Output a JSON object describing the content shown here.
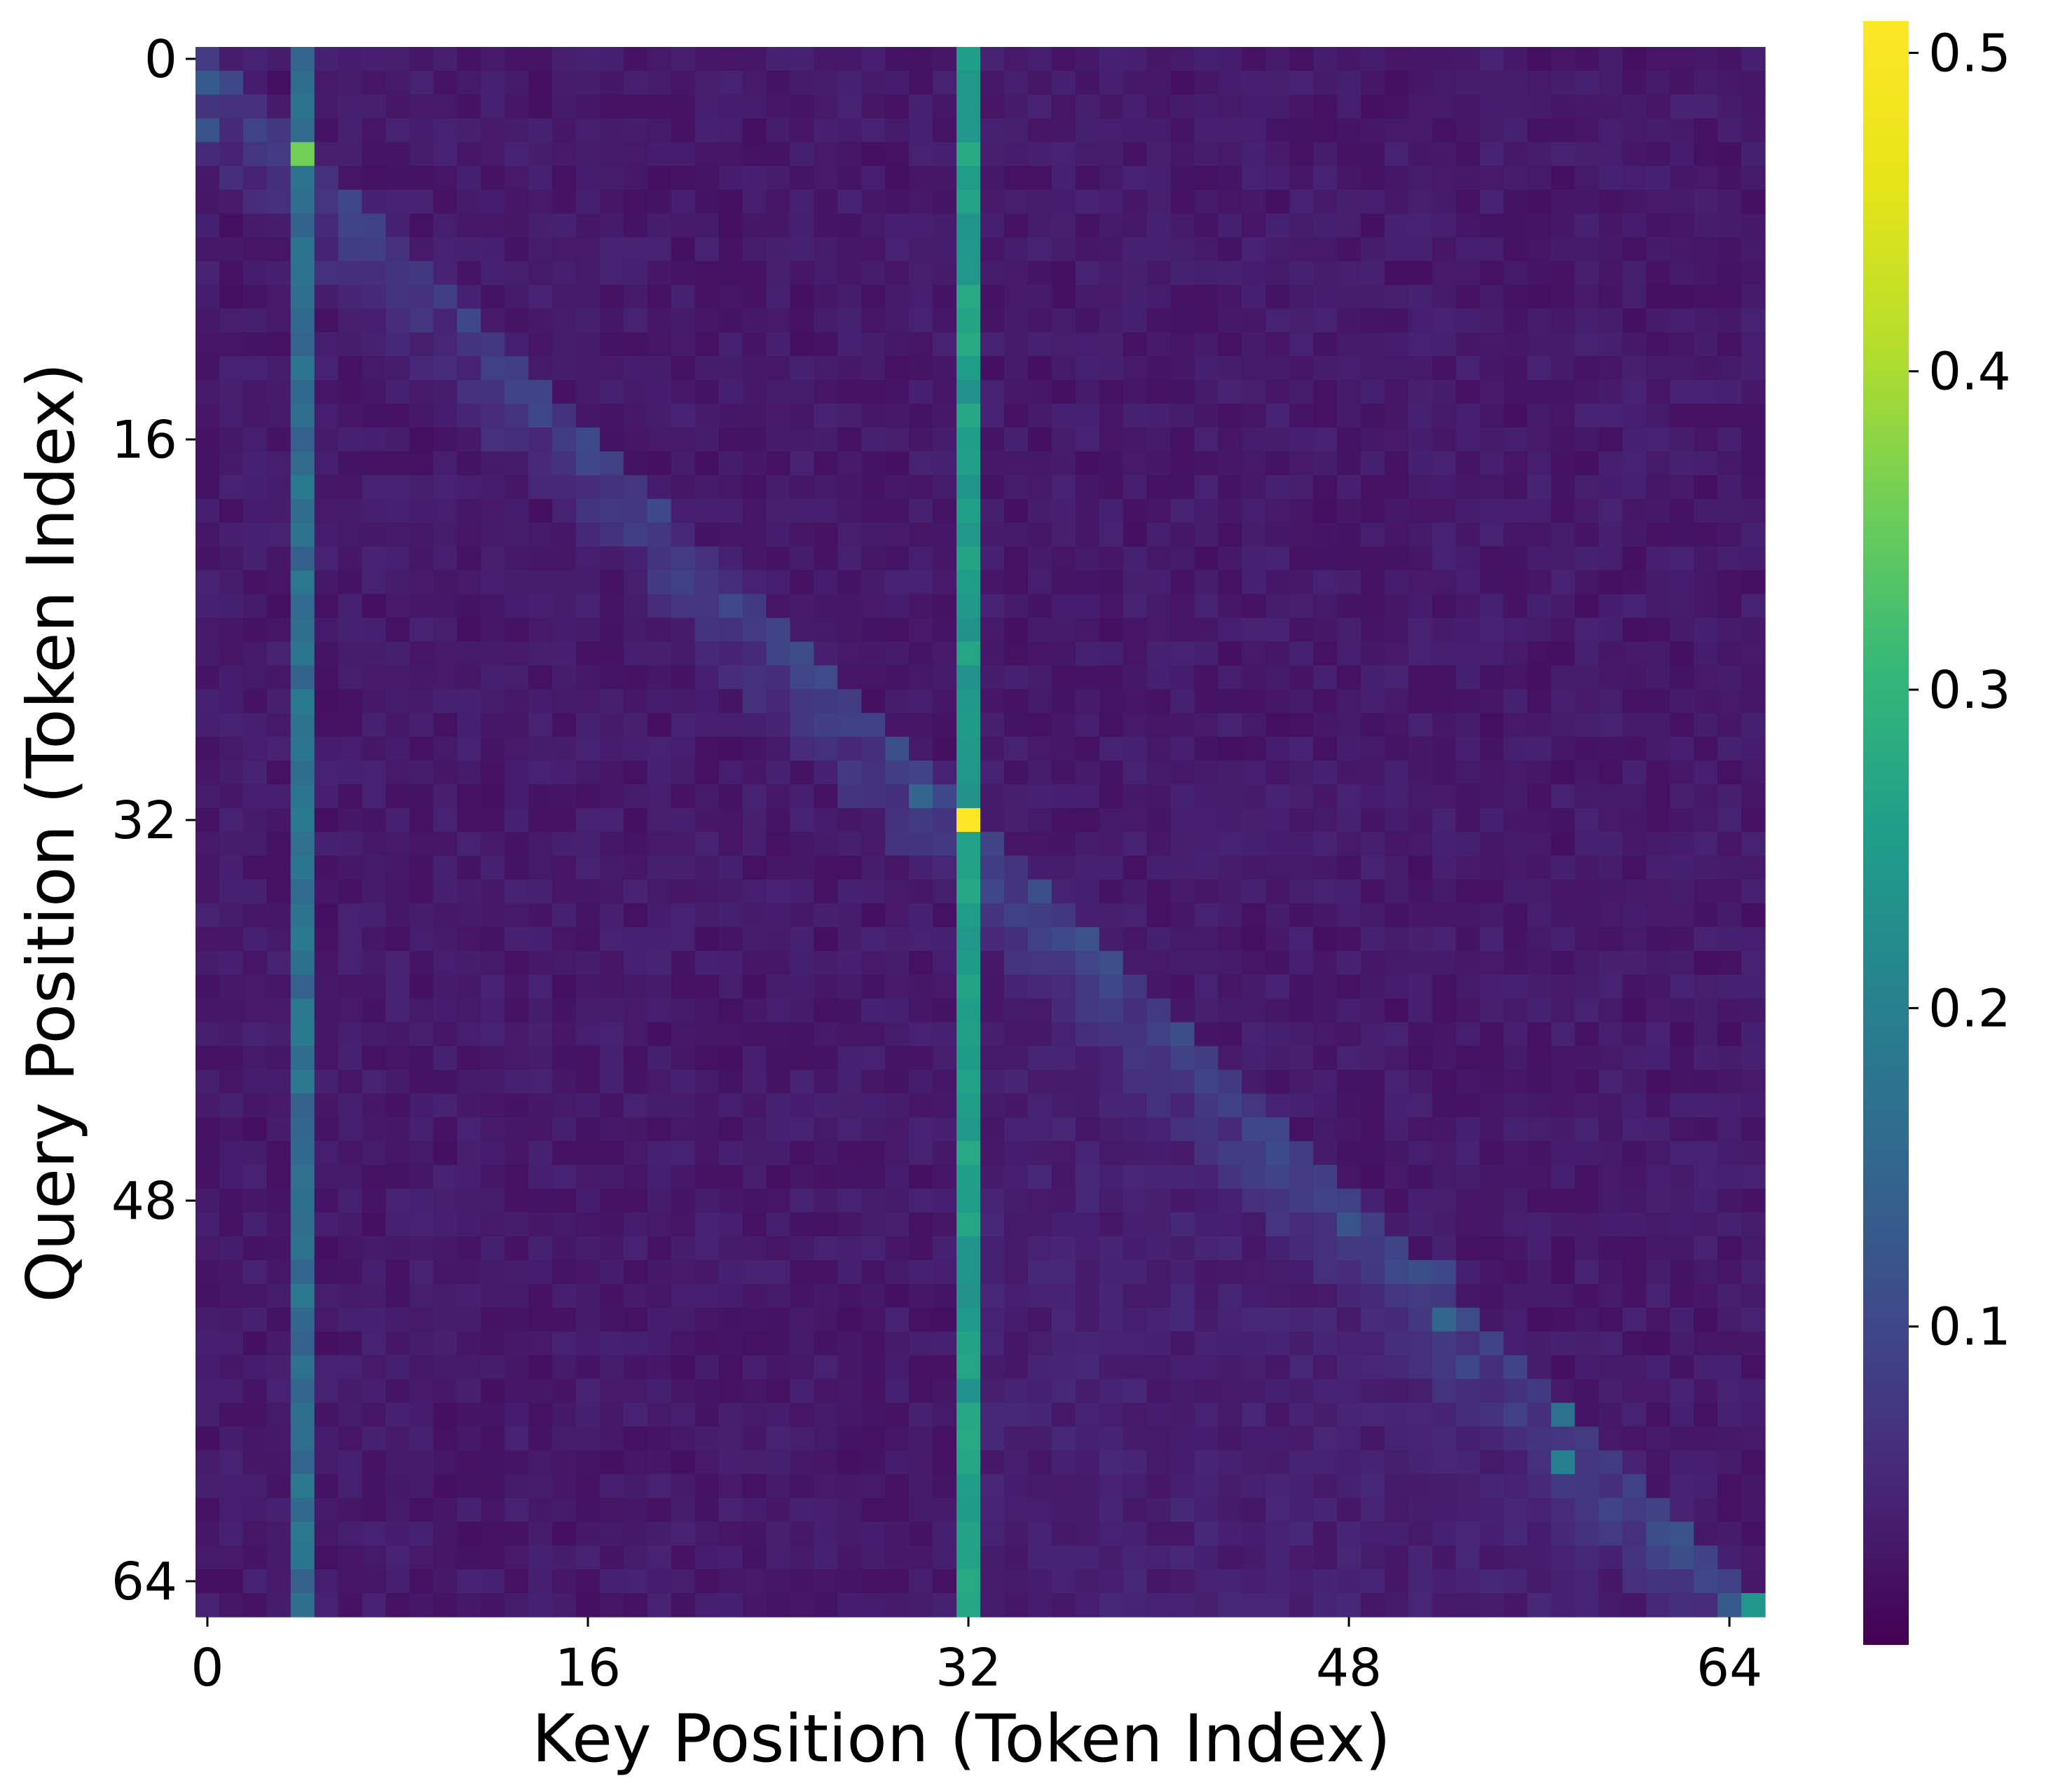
{
  "chart_data": {
    "type": "heatmap",
    "title": "",
    "xlabel": "Key Position (Token Index)",
    "ylabel": "Query Position (Token Index)",
    "x_ticks": [
      "0",
      "16",
      "32",
      "48",
      "64"
    ],
    "y_ticks": [
      "0",
      "16",
      "32",
      "48",
      "64"
    ],
    "matrix_size": 66,
    "colormap": "viridis",
    "colorbar": {
      "range": [
        0.0,
        0.51
      ],
      "ticks": [
        "0.1",
        "0.2",
        "0.3",
        "0.4",
        "0.5"
      ]
    },
    "background_value": 0.02,
    "sink_columns": [
      {
        "key": 4,
        "value": 0.17,
        "note": "near-constant column"
      },
      {
        "key": 32,
        "value": 0.26,
        "note": "near-constant column"
      }
    ],
    "diagonal_band_value": 0.06,
    "highlights": [
      {
        "query": 4,
        "key": 4,
        "value": 0.36
      },
      {
        "query": 32,
        "key": 32,
        "value": 0.51
      },
      {
        "query": 31,
        "key": 30,
        "value": 0.15
      },
      {
        "query": 53,
        "key": 52,
        "value": 0.15
      },
      {
        "query": 57,
        "key": 57,
        "value": 0.17
      },
      {
        "query": 59,
        "key": 57,
        "value": 0.2
      },
      {
        "query": 65,
        "key": 65,
        "value": 0.24
      },
      {
        "query": 1,
        "key": 0,
        "value": 0.13
      },
      {
        "query": 3,
        "key": 0,
        "value": 0.12
      },
      {
        "query": 49,
        "key": 48,
        "value": 0.12
      },
      {
        "query": 51,
        "key": 51,
        "value": 0.11
      },
      {
        "query": 51,
        "key": 52,
        "value": 0.1
      },
      {
        "query": 62,
        "key": 61,
        "value": 0.11
      },
      {
        "query": 63,
        "key": 62,
        "value": 0.11
      },
      {
        "query": 65,
        "key": 64,
        "value": 0.13
      }
    ]
  }
}
